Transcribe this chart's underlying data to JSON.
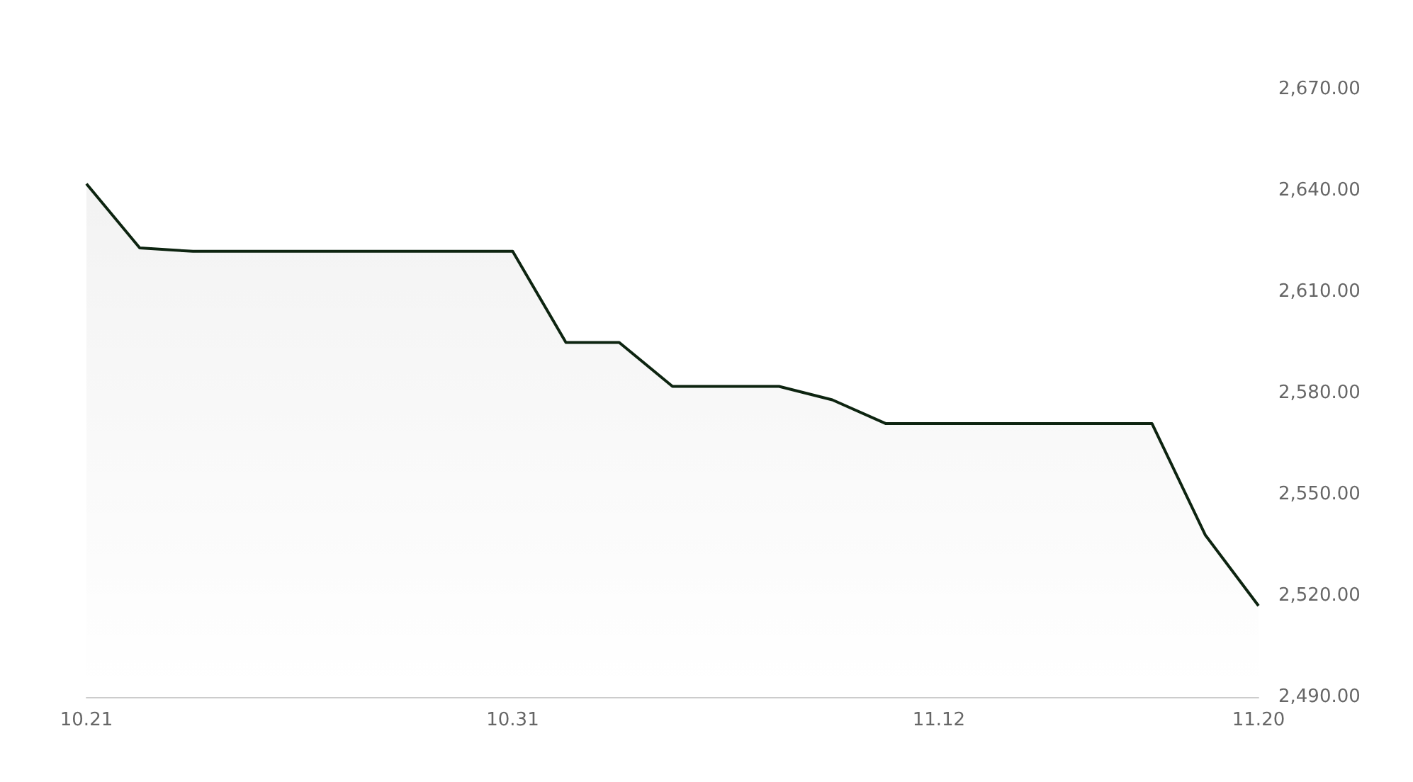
{
  "chart_data": {
    "type": "area",
    "categories": [
      "10.21",
      null,
      null,
      null,
      null,
      null,
      null,
      null,
      "10.31",
      null,
      null,
      null,
      null,
      null,
      null,
      null,
      "11.12",
      null,
      null,
      null,
      null,
      null,
      "11.20"
    ],
    "series": [
      {
        "color": "#0d2410",
        "values": [
          2642,
          2623,
          2622,
          2622,
          2622,
          2622,
          2622,
          2622,
          2622,
          2595,
          2595,
          2582,
          2582,
          2582,
          2578,
          2571,
          2571,
          2571,
          2571,
          2571,
          2571,
          2538,
          2517
        ]
      }
    ],
    "ylim": [
      2490,
      2670
    ],
    "yticks": [
      {
        "value": 2490,
        "label": "2,490.00"
      },
      {
        "value": 2520,
        "label": "2,520.00"
      },
      {
        "value": 2550,
        "label": "2,550.00"
      },
      {
        "value": 2580,
        "label": "2,580.00"
      },
      {
        "value": 2610,
        "label": "2,610.00"
      },
      {
        "value": 2640,
        "label": "2,640.00"
      },
      {
        "value": 2670,
        "label": "2,670.00"
      }
    ],
    "grid": false,
    "marker": "none"
  }
}
